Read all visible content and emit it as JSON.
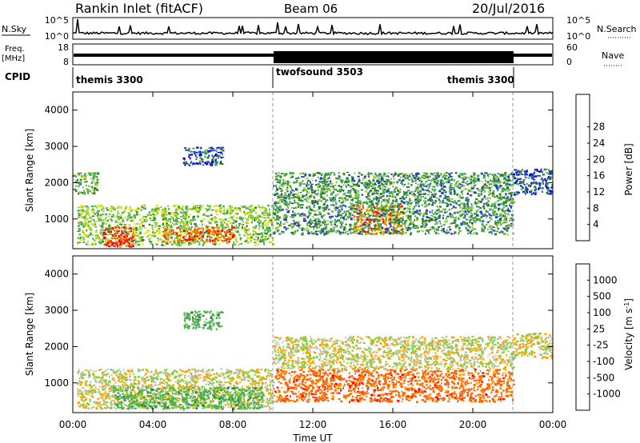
{
  "header": {
    "station": "Rankin Inlet (fitACF)",
    "beam": "Beam 06",
    "date": "20/Jul/2016"
  },
  "top_panels": {
    "nsky": {
      "label": "N.Sky",
      "ticks": [
        "10^5",
        "10^0"
      ],
      "right_label": "N.Search",
      "right_ticks": [
        "10^5",
        "10^0"
      ]
    },
    "freq": {
      "label_line1": "Freq.",
      "label_line2": "[MHz]",
      "ticks": [
        "18",
        "8"
      ],
      "right_label": "Nave",
      "right_ticks": [
        "60",
        "0"
      ]
    },
    "cpid": {
      "label": "CPID",
      "segments": [
        {
          "name": "themis 3300",
          "start_hour": 0,
          "end_hour": 10.0
        },
        {
          "name": "twofsound 3503",
          "start_hour": 10.0,
          "end_hour": 22.0
        },
        {
          "name": "themis 3300",
          "start_hour": 22.0,
          "end_hour": 24.0
        }
      ]
    }
  },
  "colors": {
    "power_scale": [
      "#0000ff",
      "#1f3fbf",
      "#2e7d32",
      "#4caf50",
      "#9acd32",
      "#e6e600",
      "#ffa500",
      "#ff6600",
      "#ff0000"
    ],
    "velocity_scale": [
      "#1f3fbf",
      "#2e7d32",
      "#4caf50",
      "#7fcf3f",
      "#c0c0c0",
      "#c0c0c0",
      "#ffa500",
      "#ff6600",
      "#ff0000"
    ]
  },
  "chart_data": [
    {
      "type": "heatmap",
      "title": "",
      "xlabel": "",
      "ylabel": "Slant Range [km]",
      "xlim": [
        0,
        24
      ],
      "ylim": [
        180,
        4500
      ],
      "x_ticks": [
        0,
        4,
        8,
        12,
        16,
        20,
        24
      ],
      "y_ticks": [
        1000,
        2000,
        3000,
        4000
      ],
      "colorbar": {
        "label": "Power [dB]",
        "ticks": [
          4,
          8,
          12,
          16,
          20,
          24,
          28
        ],
        "range": [
          0,
          30
        ]
      },
      "regions": [
        {
          "x": [
            0.2,
            10.0
          ],
          "y": [
            300,
            1400
          ],
          "value": 14
        },
        {
          "x": [
            1.5,
            3.0
          ],
          "y": [
            250,
            800
          ],
          "value": 28
        },
        {
          "x": [
            4.5,
            8.0
          ],
          "y": [
            400,
            800
          ],
          "value": 26
        },
        {
          "x": [
            14.0,
            16.5
          ],
          "y": [
            600,
            1400
          ],
          "value": 24
        },
        {
          "x": [
            10.0,
            22.0
          ],
          "y": [
            600,
            2300
          ],
          "value": 10
        },
        {
          "x": [
            5.5,
            7.5
          ],
          "y": [
            2500,
            3000
          ],
          "value": 6
        },
        {
          "x": [
            22.0,
            24.0
          ],
          "y": [
            1700,
            2400
          ],
          "value": 6
        },
        {
          "x": [
            0.0,
            1.2
          ],
          "y": [
            1700,
            2300
          ],
          "value": 12
        }
      ]
    },
    {
      "type": "heatmap",
      "title": "",
      "xlabel": "Time UT",
      "ylabel": "Slant Range [km]",
      "xlim": [
        0,
        24
      ],
      "ylim": [
        180,
        4500
      ],
      "x_ticks": [
        0,
        4,
        8,
        12,
        16,
        20,
        24
      ],
      "x_tick_labels": [
        "00:00",
        "04:00",
        "08:00",
        "12:00",
        "16:00",
        "20:00",
        "00:00"
      ],
      "y_ticks": [
        1000,
        2000,
        3000,
        4000
      ],
      "colorbar": {
        "label": "Velocity [m s-1]",
        "ticks": [
          1000,
          500,
          100,
          25,
          -25,
          -100,
          -500,
          -1000
        ]
      },
      "regions": [
        {
          "x": [
            0.2,
            10.0
          ],
          "y": [
            300,
            1400
          ],
          "value": 0
        },
        {
          "x": [
            2.0,
            9.5
          ],
          "y": [
            300,
            900
          ],
          "value": 300
        },
        {
          "x": [
            10.0,
            22.0
          ],
          "y": [
            500,
            1400
          ],
          "value": -300
        },
        {
          "x": [
            10.0,
            22.0
          ],
          "y": [
            1400,
            2300
          ],
          "value": 0
        },
        {
          "x": [
            5.5,
            7.5
          ],
          "y": [
            2500,
            3000
          ],
          "value": 300
        },
        {
          "x": [
            22.0,
            24.0
          ],
          "y": [
            1700,
            2400
          ],
          "value": 0
        }
      ]
    }
  ]
}
